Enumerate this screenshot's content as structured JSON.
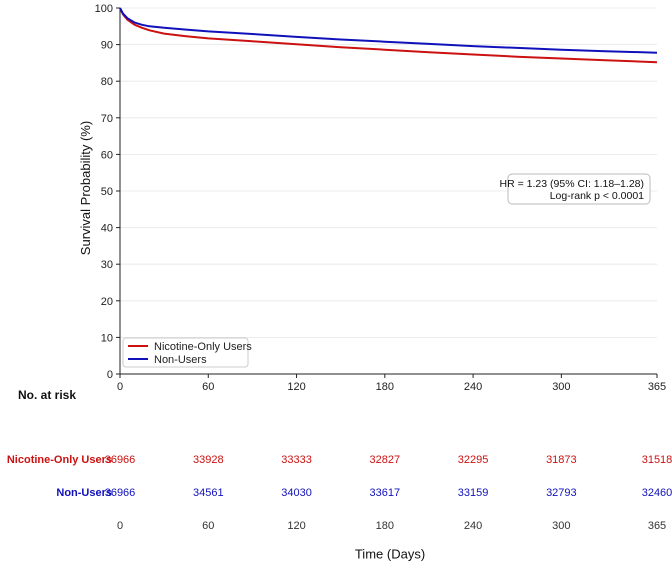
{
  "chart_data": {
    "type": "line",
    "xlabel": "Time (Days)",
    "ylabel": "Survival Probability (%)",
    "xlim": [
      0,
      365
    ],
    "ylim": [
      0,
      100
    ],
    "xticks": [
      0,
      60,
      120,
      180,
      240,
      300,
      365
    ],
    "yticks": [
      0,
      10,
      20,
      30,
      40,
      50,
      60,
      70,
      80,
      90,
      100
    ],
    "grid": true,
    "legend_position": "bottom-left",
    "series": [
      {
        "name": "Nicotine-Only Users",
        "color": "#cc1111",
        "x": [
          0,
          2,
          5,
          10,
          15,
          20,
          30,
          45,
          60,
          90,
          120,
          150,
          180,
          210,
          240,
          270,
          300,
          330,
          365
        ],
        "y": [
          100,
          98.3,
          96.8,
          95.4,
          94.6,
          93.9,
          93.0,
          92.3,
          91.7,
          90.9,
          90.1,
          89.3,
          88.6,
          87.9,
          87.3,
          86.7,
          86.2,
          85.7,
          85.2
        ]
      },
      {
        "name": "Non-Users",
        "color": "#1111bb",
        "x": [
          0,
          2,
          5,
          10,
          15,
          20,
          30,
          45,
          60,
          90,
          120,
          150,
          180,
          210,
          240,
          270,
          300,
          330,
          365
        ],
        "y": [
          100,
          98.5,
          97.2,
          96.0,
          95.4,
          95.0,
          94.6,
          94.1,
          93.6,
          92.9,
          92.1,
          91.4,
          90.8,
          90.2,
          89.6,
          89.1,
          88.6,
          88.2,
          87.8
        ]
      }
    ],
    "annotation": {
      "line1": "HR = 1.23 (95% CI: 1.18–1.28)",
      "line2": "Log-rank p < 0.0001"
    }
  },
  "risk_table": {
    "title": "No. at risk",
    "times": [
      0,
      60,
      120,
      180,
      240,
      300,
      365
    ],
    "rows": [
      {
        "label": "Nicotine-Only Users",
        "color": "#cc1111",
        "values": [
          36966,
          33928,
          33333,
          32827,
          32295,
          31873,
          31518
        ]
      },
      {
        "label": "Non-Users",
        "color": "#1111bb",
        "values": [
          36966,
          34561,
          34030,
          33617,
          33159,
          32793,
          32460
        ]
      }
    ]
  }
}
